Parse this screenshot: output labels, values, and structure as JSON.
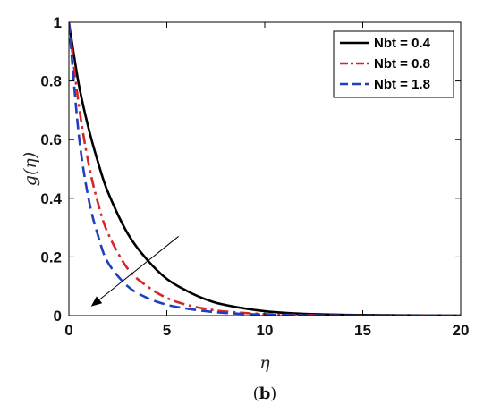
{
  "chart_data": {
    "type": "line",
    "xlabel": "η",
    "ylabel": "g(η)",
    "xlim": [
      0,
      20
    ],
    "ylim": [
      0,
      1
    ],
    "xticks": [
      0,
      5,
      10,
      15,
      20
    ],
    "yticks": [
      0,
      0.2,
      0.4,
      0.6,
      0.8,
      1
    ],
    "xtick_labels": [
      "0",
      "5",
      "10",
      "15",
      "20"
    ],
    "ytick_labels": [
      "0",
      "0.2",
      "0.4",
      "0.6",
      "0.8",
      "1"
    ],
    "grid": false,
    "legend_position": "top-right",
    "series": [
      {
        "name": "Nbt = 0.4",
        "color": "#000000",
        "style": "solid",
        "x": [
          0,
          0.5,
          1,
          1.5,
          2,
          3,
          4,
          5,
          6,
          7,
          8,
          10,
          12,
          15,
          20
        ],
        "y": [
          1.0,
          0.79,
          0.64,
          0.52,
          0.42,
          0.28,
          0.19,
          0.125,
          0.085,
          0.055,
          0.036,
          0.015,
          0.006,
          0.002,
          0.0
        ]
      },
      {
        "name": "Nbt = 0.8",
        "color": "#d62728",
        "style": "dashdot",
        "x": [
          0,
          0.5,
          1,
          1.5,
          2,
          3,
          4,
          5,
          6,
          7,
          8,
          10,
          12,
          15,
          20
        ],
        "y": [
          1.0,
          0.72,
          0.52,
          0.38,
          0.28,
          0.16,
          0.1,
          0.06,
          0.037,
          0.023,
          0.014,
          0.005,
          0.002,
          0.0,
          0.0
        ]
      },
      {
        "name": "Nbt = 1.8",
        "color": "#1f3fbf",
        "style": "dashed",
        "x": [
          0,
          0.5,
          1,
          1.5,
          2,
          3,
          4,
          5,
          6,
          7,
          8,
          10,
          12,
          15,
          20
        ],
        "y": [
          1.0,
          0.62,
          0.4,
          0.27,
          0.18,
          0.1,
          0.06,
          0.037,
          0.024,
          0.015,
          0.009,
          0.003,
          0.001,
          0.0,
          0.0
        ]
      }
    ],
    "annotations": [
      {
        "type": "arrow",
        "from": [
          5.6,
          0.27
        ],
        "to": [
          1.2,
          0.035
        ]
      }
    ]
  },
  "caption": {
    "open": "(",
    "label": "b",
    "close": ")"
  }
}
